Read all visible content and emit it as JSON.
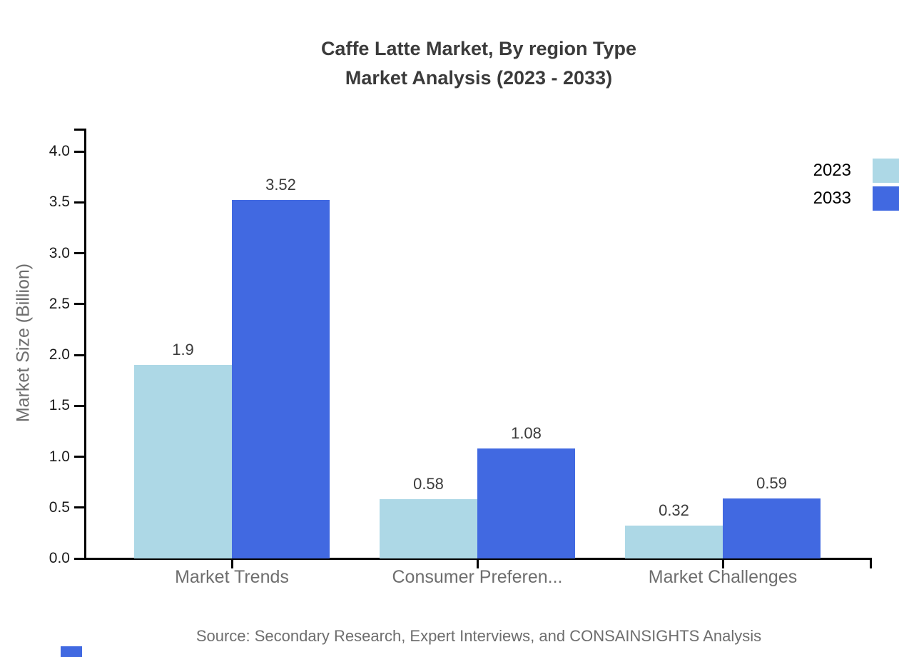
{
  "title": {
    "line1": "Caffe Latte Market, By region Type",
    "line2": "Market Analysis (2023 - 2033)"
  },
  "source": "Source: Secondary Research, Expert Interviews, and CONSAINSIGHTS Analysis",
  "colors": {
    "series_2023": "#ADD8E6",
    "series_2033": "#4169E1",
    "axis": "#000000",
    "title_text": "#3b3b3b",
    "muted_text": "#6e6e6e",
    "tick_text": "#1a1a1a",
    "logo": "#4169E1"
  },
  "chart_data": {
    "type": "bar",
    "categories": [
      "Market Trends",
      "Consumer Preferen...",
      "Market Challenges"
    ],
    "series": [
      {
        "name": "2023",
        "color": "#ADD8E6",
        "values": [
          1.9,
          0.58,
          0.32
        ]
      },
      {
        "name": "2033",
        "color": "#4169E1",
        "values": [
          3.52,
          1.08,
          0.59
        ]
      }
    ],
    "title": "Caffe Latte Market, By region Type Market Analysis (2023 - 2033)",
    "xlabel": "",
    "ylabel": "Market Size (Billion)",
    "ylim": [
      0,
      4.2
    ],
    "y_ticks": [
      0.0,
      0.5,
      1.0,
      1.5,
      2.0,
      2.5,
      3.0,
      3.5,
      4.0
    ],
    "grid": false,
    "legend_position": "top-right",
    "value_labels": true
  }
}
